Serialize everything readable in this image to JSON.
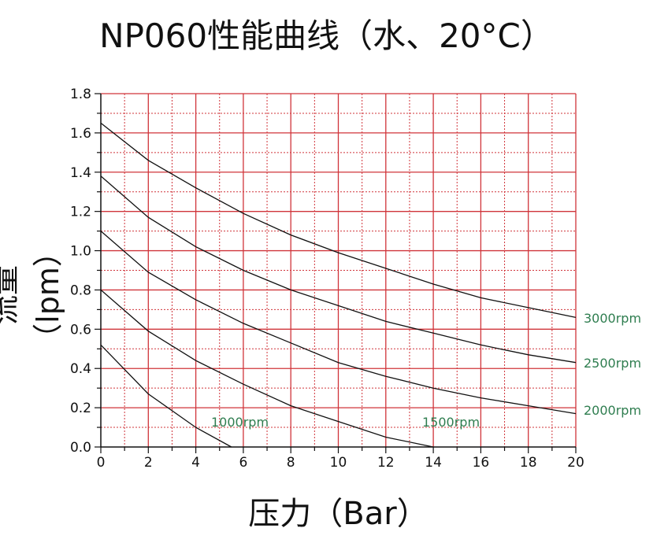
{
  "chart_data": {
    "type": "line",
    "title": "NP060性能曲线（水、20°C）",
    "xlabel": "压力（Bar）",
    "ylabel": "流量（lpm）",
    "xlim": [
      0,
      20
    ],
    "ylim": [
      0,
      1.8
    ],
    "xticks": [
      0,
      2,
      4,
      6,
      8,
      10,
      12,
      14,
      16,
      18,
      20
    ],
    "yticks": [
      "0.0",
      "0.2",
      "0.4",
      "0.6",
      "0.8",
      "1.0",
      "1.2",
      "1.4",
      "1.6",
      "1.8"
    ],
    "grid": true,
    "grid_color": "#d0343a",
    "line_color": "#111111",
    "label_color": "#2e7d4f",
    "series": [
      {
        "name": "3000rpm",
        "x": [
          0,
          2,
          4,
          6,
          8,
          10,
          12,
          14,
          16,
          18,
          20
        ],
        "y": [
          1.65,
          1.46,
          1.32,
          1.19,
          1.08,
          0.99,
          0.91,
          0.83,
          0.76,
          0.71,
          0.66
        ]
      },
      {
        "name": "2500rpm",
        "x": [
          0,
          2,
          4,
          6,
          8,
          10,
          12,
          14,
          16,
          18,
          20
        ],
        "y": [
          1.38,
          1.17,
          1.02,
          0.9,
          0.8,
          0.72,
          0.64,
          0.58,
          0.52,
          0.47,
          0.43
        ]
      },
      {
        "name": "2000rpm",
        "x": [
          0,
          2,
          4,
          6,
          8,
          10,
          12,
          14,
          16,
          18,
          20
        ],
        "y": [
          1.1,
          0.89,
          0.75,
          0.63,
          0.53,
          0.43,
          0.36,
          0.3,
          0.25,
          0.21,
          0.17
        ]
      },
      {
        "name": "1500rpm",
        "x": [
          0,
          2,
          4,
          6,
          8,
          10,
          12,
          14
        ],
        "y": [
          0.8,
          0.59,
          0.44,
          0.32,
          0.21,
          0.13,
          0.05,
          0.0
        ]
      },
      {
        "name": "1000rpm",
        "x": [
          0,
          2,
          4,
          5.5
        ],
        "y": [
          0.52,
          0.27,
          0.1,
          0.0
        ]
      }
    ]
  }
}
